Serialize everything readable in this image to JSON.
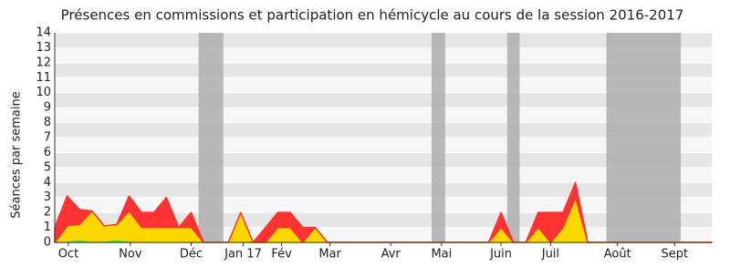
{
  "chart_data": {
    "type": "stacked-area",
    "title": "Présences en commissions et participation en hémicycle au cours de la session 2016-2017",
    "y_label": "Séances par semaine",
    "x": [
      0,
      1,
      2,
      3,
      4,
      5,
      6,
      7,
      8,
      9,
      10,
      11,
      12,
      13,
      14,
      15,
      16,
      17,
      18,
      19,
      20,
      21,
      22,
      23,
      24,
      25,
      26,
      27,
      28,
      29,
      30,
      31,
      32,
      33,
      34,
      35,
      36,
      37,
      38,
      39,
      40,
      41,
      42,
      43,
      44,
      45,
      46,
      47,
      48,
      49,
      50,
      51,
      52,
      53
    ],
    "series": [
      {
        "color": "#66dd33",
        "values": [
          0,
          0.1,
          0.2,
          0.1,
          0.1,
          0.2,
          0.1,
          0,
          0,
          0,
          0,
          0,
          0,
          0,
          0,
          0,
          0,
          0,
          0,
          0,
          0,
          0,
          0,
          0,
          0,
          0,
          0,
          0,
          0,
          0,
          0,
          0,
          0,
          0,
          0,
          0,
          0,
          0,
          0,
          0,
          0,
          0,
          0,
          0,
          0,
          0,
          0,
          0,
          0,
          0,
          0,
          0,
          0,
          0
        ]
      },
      {
        "color": "#ffd700",
        "values": [
          0,
          1,
          1,
          2,
          1,
          1,
          2,
          1,
          1,
          1,
          1,
          1,
          0,
          0,
          0,
          2,
          0,
          0,
          1,
          1,
          0,
          1,
          0,
          0,
          0,
          0,
          0,
          0,
          0,
          0,
          0,
          0,
          0,
          0,
          0,
          0,
          1,
          0,
          0,
          1,
          0,
          1,
          3,
          0,
          0,
          0,
          0,
          0,
          0,
          0,
          0,
          0,
          0,
          0
        ]
      },
      {
        "color": "#ff3333",
        "values": [
          1,
          2,
          1,
          0,
          0,
          0,
          1,
          1,
          1,
          2,
          0,
          1,
          0,
          0,
          0,
          0,
          0,
          1,
          1,
          1,
          1,
          0,
          0,
          0,
          0,
          0,
          0,
          0,
          0,
          0,
          0,
          0,
          0,
          0,
          0,
          0,
          1,
          0,
          0,
          1,
          2,
          1,
          1,
          0,
          0,
          0,
          0,
          0,
          0,
          0,
          0,
          0,
          0,
          0
        ]
      }
    ],
    "xlim": [
      0,
      53
    ],
    "xticks": [
      {
        "value": 1.1,
        "label": "Oct"
      },
      {
        "value": 6.1,
        "label": "Nov"
      },
      {
        "value": 11,
        "label": "Déc"
      },
      {
        "value": 15.2,
        "label": "Jan 17"
      },
      {
        "value": 18.3,
        "label": "Fév"
      },
      {
        "value": 22.2,
        "label": "Mar"
      },
      {
        "value": 27.1,
        "label": "Avr"
      },
      {
        "value": 31.2,
        "label": "Mai"
      },
      {
        "value": 36,
        "label": "Juin"
      },
      {
        "value": 40,
        "label": "Juil"
      },
      {
        "value": 45.4,
        "label": "Août"
      },
      {
        "value": 50,
        "label": "Sept"
      }
    ],
    "ylim": [
      0,
      14
    ],
    "yticks": [
      0,
      1,
      2,
      3,
      4,
      5,
      6,
      7,
      8,
      9,
      10,
      11,
      12,
      13,
      14
    ],
    "vacations": [
      [
        11.6,
        13.6
      ],
      [
        30.4,
        31.5
      ],
      [
        36.5,
        37.5
      ],
      [
        44.5,
        50.5
      ]
    ],
    "vacation_color": "#aaaaaa"
  }
}
